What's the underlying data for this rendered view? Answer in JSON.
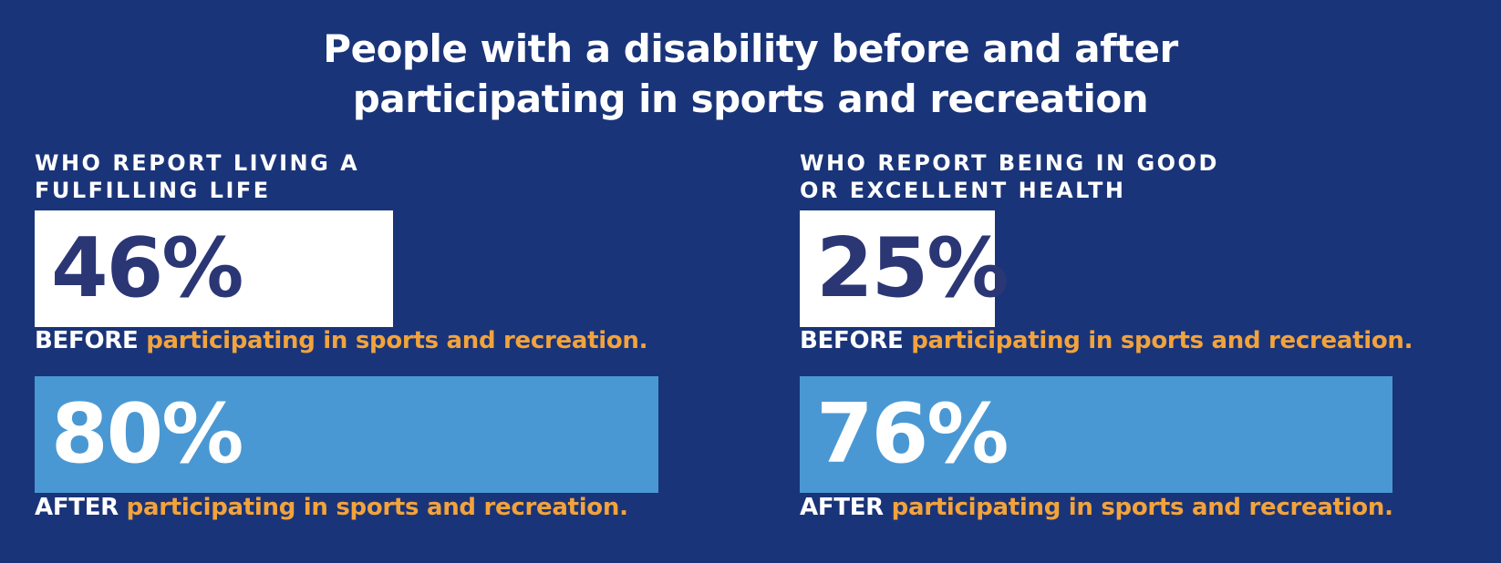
{
  "title": {
    "line1": "People with a disability before and after",
    "line2": "participating in sports and recreation"
  },
  "colors": {
    "background": "#1a3479",
    "before_bar": "#ffffff",
    "before_text": "#2b3675",
    "after_bar": "#4a98d3",
    "after_text": "#ffffff",
    "accent": "#f2a33c"
  },
  "chart_data": [
    {
      "type": "bar",
      "title": "WHO REPORT LIVING A FULFILLING LIFE",
      "title_lines": [
        "WHO REPORT LIVING A",
        "FULFILLING LIFE"
      ],
      "unit": "%",
      "bars": [
        {
          "value": 46,
          "label_text": "46%",
          "caption_label": "BEFORE",
          "caption_rest": " participating in sports and recreation."
        },
        {
          "value": 80,
          "label_text": "80%",
          "caption_label": "AFTER",
          "caption_rest": " participating in sports and recreation."
        }
      ]
    },
    {
      "type": "bar",
      "title": "WHO REPORT BEING IN GOOD OR EXCELLENT HEALTH",
      "title_lines": [
        "WHO REPORT BEING IN GOOD",
        "OR EXCELLENT HEALTH"
      ],
      "unit": "%",
      "bars": [
        {
          "value": 25,
          "label_text": "25%",
          "caption_label": "BEFORE",
          "caption_rest": " participating in sports and recreation."
        },
        {
          "value": 76,
          "label_text": "76%",
          "caption_label": "AFTER",
          "caption_rest": " participating in sports and recreation."
        }
      ]
    }
  ]
}
